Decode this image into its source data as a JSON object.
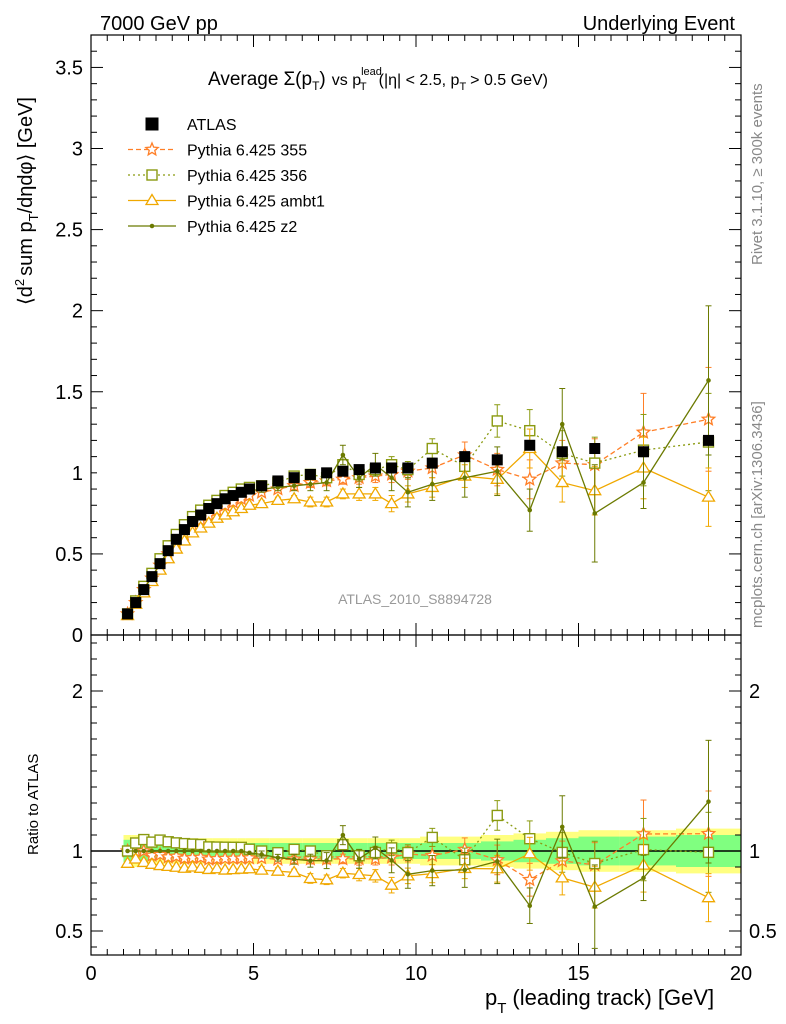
{
  "header": {
    "left": "7000 GeV pp",
    "right": "Underlying Event"
  },
  "side_labels": {
    "rivet": "Rivet 3.1.10, ≥ 300k events",
    "mcplots": "mcplots.cern.ch [arXiv:1306.3436]"
  },
  "chart_data": {
    "type": "scatter",
    "title": {
      "prefix": "Average",
      "sigma": "Σ(p",
      "sigma_sub": "T",
      "sigma_close": ")",
      "vs": "vs p",
      "lead_sup": "lead",
      "lead_sub": "T",
      "cuts_a": "(|η| < 2.5, p",
      "cuts_sub": "T",
      "cuts_b": "> 0.5 GeV)"
    },
    "watermark": "ATLAS_2010_S8894728",
    "xlabel": {
      "main": "p",
      "sub": "T",
      "rest": "(leading track) [GeV]"
    },
    "ylabel": {
      "a": "⟨d",
      "sup": "2",
      "b": "sum p",
      "sub": "T",
      "c": "/dηdφ⟩ [GeV]"
    },
    "ratio_ylabel": "Ratio to ATLAS",
    "xlim": [
      0,
      20
    ],
    "ylim_main": [
      0,
      3.7
    ],
    "ylim_ratio": [
      0.35,
      2.35
    ],
    "xticks": [
      "0",
      "5",
      "10",
      "15",
      "20"
    ],
    "yticks_main": [
      "0",
      "0.5",
      "1",
      "1.5",
      "2",
      "2.5",
      "3",
      "3.5"
    ],
    "yticks_ratio": [
      "0.5",
      "1",
      "2"
    ],
    "x": [
      1.125,
      1.375,
      1.625,
      1.875,
      2.125,
      2.375,
      2.625,
      2.875,
      3.125,
      3.375,
      3.625,
      3.875,
      4.125,
      4.375,
      4.625,
      4.875,
      5.25,
      5.75,
      6.25,
      6.75,
      7.25,
      7.75,
      8.25,
      8.75,
      9.25,
      9.75,
      10.5,
      11.5,
      12.5,
      13.5,
      14.5,
      15.5,
      17,
      19
    ],
    "atlas": {
      "name": "ATLAS",
      "color": "#000000",
      "values": [
        0.13,
        0.2,
        0.28,
        0.36,
        0.44,
        0.52,
        0.59,
        0.65,
        0.7,
        0.74,
        0.78,
        0.81,
        0.84,
        0.86,
        0.88,
        0.9,
        0.92,
        0.95,
        0.97,
        0.99,
        1.0,
        1.01,
        1.02,
        1.03,
        1.03,
        1.03,
        1.06,
        1.1,
        1.08,
        1.17,
        1.13,
        1.15,
        1.13,
        1.2
      ],
      "band_green": [
        0.07,
        0.07,
        0.06,
        0.06,
        0.05,
        0.05,
        0.05,
        0.05,
        0.05,
        0.05,
        0.05,
        0.05,
        0.05,
        0.05,
        0.05,
        0.05,
        0.05,
        0.05,
        0.05,
        0.05,
        0.05,
        0.05,
        0.05,
        0.05,
        0.05,
        0.05,
        0.05,
        0.05,
        0.06,
        0.07,
        0.08,
        0.09,
        0.09,
        0.1
      ],
      "band_yellow": [
        0.1,
        0.1,
        0.09,
        0.09,
        0.08,
        0.08,
        0.08,
        0.08,
        0.08,
        0.08,
        0.08,
        0.08,
        0.08,
        0.08,
        0.08,
        0.08,
        0.08,
        0.08,
        0.08,
        0.08,
        0.08,
        0.08,
        0.08,
        0.08,
        0.08,
        0.08,
        0.09,
        0.09,
        0.1,
        0.11,
        0.12,
        0.13,
        0.13,
        0.14
      ]
    },
    "series": [
      {
        "name": "Pythia 6.425 355",
        "color": "#ff7f27",
        "marker": "star",
        "dash": "5,3",
        "values": [
          0.13,
          0.2,
          0.28,
          0.35,
          0.43,
          0.5,
          0.57,
          0.62,
          0.67,
          0.71,
          0.74,
          0.77,
          0.8,
          0.82,
          0.84,
          0.86,
          0.88,
          0.9,
          0.92,
          0.94,
          0.95,
          0.96,
          0.97,
          0.98,
          0.99,
          1.01,
          1.03,
          1.11,
          1.02,
          0.96,
          1.06,
          1.05,
          1.25,
          1.33
        ],
        "errors": [
          0.01,
          0.01,
          0.01,
          0.01,
          0.01,
          0.01,
          0.01,
          0.01,
          0.01,
          0.01,
          0.01,
          0.01,
          0.01,
          0.01,
          0.01,
          0.01,
          0.02,
          0.02,
          0.02,
          0.03,
          0.03,
          0.03,
          0.04,
          0.04,
          0.05,
          0.05,
          0.06,
          0.08,
          0.1,
          0.12,
          0.14,
          0.16,
          0.24,
          0.32
        ]
      },
      {
        "name": "Pythia 6.425 356",
        "color": "#8a9a10",
        "marker": "square",
        "dash": "2,3",
        "values": [
          0.13,
          0.21,
          0.3,
          0.38,
          0.47,
          0.55,
          0.62,
          0.68,
          0.73,
          0.77,
          0.8,
          0.83,
          0.86,
          0.88,
          0.9,
          0.91,
          0.92,
          0.94,
          0.98,
          0.99,
          0.97,
          1.05,
          0.99,
          1.02,
          1.05,
          1.02,
          1.15,
          1.04,
          1.32,
          1.26,
          1.12,
          1.06,
          1.14,
          1.19
        ],
        "errors": [
          0.01,
          0.01,
          0.01,
          0.01,
          0.01,
          0.01,
          0.01,
          0.01,
          0.01,
          0.01,
          0.01,
          0.01,
          0.01,
          0.01,
          0.01,
          0.01,
          0.02,
          0.02,
          0.02,
          0.03,
          0.03,
          0.03,
          0.04,
          0.04,
          0.05,
          0.05,
          0.06,
          0.08,
          0.1,
          0.13,
          0.14,
          0.16,
          0.22,
          0.3
        ]
      },
      {
        "name": "Pythia 6.425 ambt1",
        "color": "#f0a800",
        "marker": "triangle",
        "dash": "",
        "values": [
          0.12,
          0.19,
          0.26,
          0.33,
          0.4,
          0.47,
          0.53,
          0.58,
          0.63,
          0.66,
          0.69,
          0.72,
          0.74,
          0.76,
          0.78,
          0.8,
          0.81,
          0.83,
          0.84,
          0.82,
          0.82,
          0.87,
          0.87,
          0.87,
          0.81,
          0.87,
          0.91,
          0.98,
          0.96,
          1.15,
          0.94,
          0.89,
          1.03,
          0.85
        ],
        "errors": [
          0.01,
          0.01,
          0.01,
          0.01,
          0.01,
          0.01,
          0.01,
          0.01,
          0.01,
          0.01,
          0.01,
          0.01,
          0.01,
          0.01,
          0.01,
          0.01,
          0.02,
          0.02,
          0.02,
          0.03,
          0.03,
          0.03,
          0.04,
          0.04,
          0.05,
          0.05,
          0.06,
          0.07,
          0.09,
          0.12,
          0.12,
          0.15,
          0.19,
          0.18
        ]
      },
      {
        "name": "Pythia 6.425 z2",
        "color": "#6b7a00",
        "marker": "dot",
        "dash": "",
        "values": [
          0.13,
          0.2,
          0.28,
          0.36,
          0.44,
          0.52,
          0.59,
          0.65,
          0.7,
          0.74,
          0.78,
          0.81,
          0.84,
          0.86,
          0.88,
          0.89,
          0.9,
          0.91,
          0.92,
          0.93,
          0.94,
          1.11,
          0.97,
          1.05,
          0.97,
          0.88,
          0.93,
          0.97,
          1.01,
          0.77,
          1.3,
          0.75,
          0.94,
          1.57
        ],
        "errors": [
          0.01,
          0.01,
          0.01,
          0.01,
          0.01,
          0.01,
          0.01,
          0.01,
          0.01,
          0.01,
          0.01,
          0.01,
          0.01,
          0.01,
          0.01,
          0.01,
          0.02,
          0.02,
          0.03,
          0.04,
          0.05,
          0.06,
          0.06,
          0.07,
          0.08,
          0.09,
          0.1,
          0.12,
          0.15,
          0.13,
          0.22,
          0.3,
          0.16,
          0.46
        ]
      }
    ]
  }
}
